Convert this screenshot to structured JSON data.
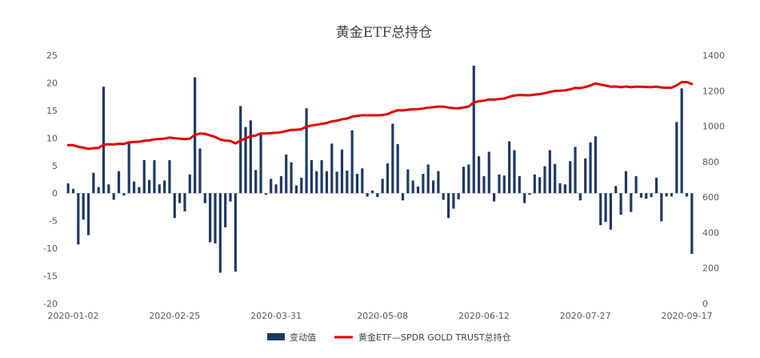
{
  "chart_data": {
    "type": "bar+line",
    "title": "黄金ETF总持仓",
    "x_ticks": [
      "2020-01-02",
      "2020-02-25",
      "2020-03-31",
      "2020-05-08",
      "2020-06-12",
      "2020-07-27",
      "2020-09-17"
    ],
    "y_left": {
      "ticks": [
        "25",
        "20",
        "15",
        "10",
        "5",
        "0",
        "-5",
        "-10",
        "-15",
        "-20"
      ],
      "range": [
        -20,
        25
      ]
    },
    "y_right": {
      "ticks": [
        "1400",
        "1200",
        "1000",
        "800",
        "600",
        "400",
        "200",
        "0"
      ],
      "range": [
        0,
        1400
      ]
    },
    "series": [
      {
        "name": "变动值",
        "kind": "bar",
        "color": "#1f3864",
        "values": [
          1.8,
          0.8,
          -9.3,
          -4.8,
          -7.6,
          3.7,
          1.1,
          19.3,
          1.6,
          -1.2,
          4.0,
          -0.4,
          9.2,
          2.1,
          1.1,
          6.0,
          2.4,
          6.0,
          1.6,
          2.3,
          6.0,
          -4.5,
          -1.8,
          -3.3,
          3.4,
          21.0,
          8.1,
          -1.8,
          -8.9,
          -9.1,
          -14.4,
          -6.2,
          -1.5,
          -14.2,
          15.8,
          12.0,
          13.2,
          4.2,
          10.8,
          -0.3,
          2.6,
          1.6,
          3.1,
          7.0,
          5.6,
          1.4,
          2.8,
          15.4,
          6.0,
          4.0,
          6.0,
          4.0,
          9.0,
          3.9,
          7.9,
          4.1,
          11.4,
          3.5,
          4.5,
          -0.6,
          0.5,
          -0.7,
          2.6,
          5.4,
          12.6,
          8.9,
          -1.3,
          4.3,
          2.3,
          1.2,
          3.5,
          5.2,
          2.3,
          4.0,
          -1.2,
          -4.5,
          -2.8,
          -1.1,
          4.8,
          5.2,
          23.1,
          6.7,
          3.1,
          7.5,
          -1.5,
          3.4,
          3.2,
          9.4,
          7.8,
          3.1,
          -1.8,
          -0.3,
          3.4,
          2.9,
          4.9,
          7.8,
          5.3,
          1.8,
          1.6,
          5.8,
          8.4,
          -1.3,
          6.3,
          9.2,
          10.3,
          -5.8,
          -5.2,
          -6.6,
          1.3,
          -3.9,
          4.0,
          -3.4,
          3.1,
          -0.8,
          -1.0,
          -0.7,
          2.8,
          -5.1,
          -0.6,
          -0.6,
          12.9,
          19.0,
          -0.6,
          -11.0
        ]
      },
      {
        "name": "黄金ETF—SPDR GOLD TRUST总持仓",
        "kind": "line",
        "color": "#e00000",
        "values": [
          893,
          893,
          884,
          879,
          872,
          876,
          877,
          896,
          898,
          897,
          901,
          900,
          909,
          911,
          912,
          918,
          920,
          926,
          928,
          930,
          936,
          932,
          930,
          927,
          930,
          951,
          959,
          957,
          948,
          939,
          925,
          919,
          917,
          903,
          919,
          931,
          944,
          948,
          959,
          959,
          961,
          963,
          966,
          973,
          979,
          980,
          983,
          998,
          1004,
          1008,
          1014,
          1018,
          1027,
          1031,
          1039,
          1043,
          1054,
          1058,
          1062,
          1061,
          1062,
          1061,
          1063,
          1068,
          1081,
          1090,
          1089,
          1093,
          1095,
          1096,
          1100,
          1105,
          1107,
          1111,
          1110,
          1105,
          1102,
          1101,
          1106,
          1111,
          1134,
          1141,
          1144,
          1151,
          1150,
          1153,
          1156,
          1166,
          1173,
          1176,
          1175,
          1174,
          1178,
          1181,
          1186,
          1193,
          1199,
          1200,
          1202,
          1208,
          1216,
          1215,
          1221,
          1230,
          1241,
          1235,
          1229,
          1223,
          1224,
          1220,
          1224,
          1220,
          1223,
          1222,
          1221,
          1220,
          1223,
          1218,
          1217,
          1217,
          1230,
          1249,
          1249,
          1238
        ]
      }
    ],
    "legend_position": "bottom",
    "grid": false
  }
}
